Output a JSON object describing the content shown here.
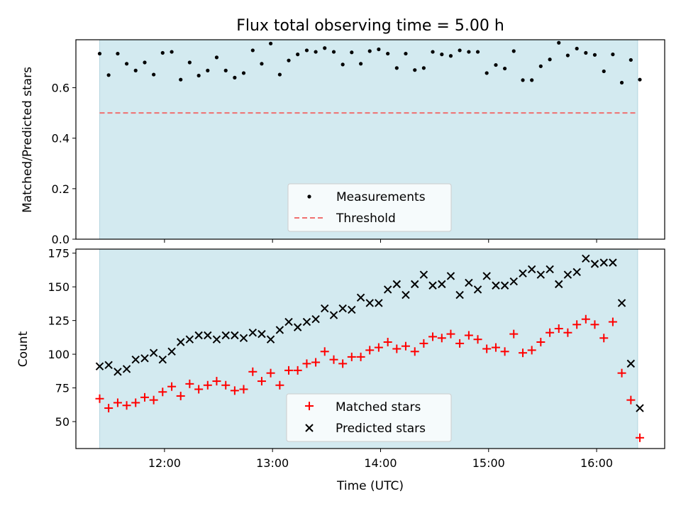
{
  "chart_data": [
    {
      "type": "scatter",
      "title": "Flux total observing time = 5.00 h",
      "xlabel": "",
      "ylabel": "Matched/Predicted stars",
      "xlim": [
        11.18,
        16.63
      ],
      "ylim": [
        0,
        0.79
      ],
      "yticks": [
        0,
        0.2,
        0.4,
        0.6
      ],
      "ytick_labels": [
        "0.0",
        "0.2",
        "0.4",
        "0.6"
      ],
      "shaded_x": [
        11.4,
        16.38
      ],
      "shade_color": "#d3eaf0",
      "threshold": 0.5,
      "legend": [
        "Measurements",
        "Threshold"
      ],
      "legend_location": "lower center",
      "series": [
        {
          "name": "Measurements",
          "x": [
            11.4,
            11.483,
            11.567,
            11.65,
            11.733,
            11.817,
            11.9,
            11.983,
            12.067,
            12.15,
            12.233,
            12.317,
            12.4,
            12.483,
            12.567,
            12.65,
            12.733,
            12.817,
            12.9,
            12.983,
            13.067,
            13.15,
            13.233,
            13.317,
            13.4,
            13.483,
            13.567,
            13.65,
            13.733,
            13.817,
            13.9,
            13.983,
            14.067,
            14.15,
            14.233,
            14.317,
            14.4,
            14.483,
            14.567,
            14.65,
            14.733,
            14.817,
            14.9,
            14.983,
            15.067,
            15.15,
            15.233,
            15.317,
            15.4,
            15.483,
            15.567,
            15.65,
            15.733,
            15.817,
            15.9,
            15.983,
            16.067,
            16.15,
            16.233,
            16.317,
            16.4
          ],
          "values": [
            0.735,
            0.65,
            0.735,
            0.695,
            0.668,
            0.7,
            0.652,
            0.738,
            0.742,
            0.632,
            0.7,
            0.648,
            0.668,
            0.72,
            0.668,
            0.64,
            0.658,
            0.748,
            0.695,
            0.775,
            0.652,
            0.708,
            0.732,
            0.748,
            0.742,
            0.757,
            0.742,
            0.692,
            0.74,
            0.695,
            0.745,
            0.752,
            0.735,
            0.678,
            0.735,
            0.67,
            0.678,
            0.742,
            0.732,
            0.726,
            0.748,
            0.742,
            0.742,
            0.658,
            0.69,
            0.676,
            0.745,
            0.63,
            0.63,
            0.685,
            0.712,
            0.778,
            0.728,
            0.755,
            0.738,
            0.73,
            0.665,
            0.732,
            0.62,
            0.71,
            0.632
          ]
        },
        {
          "name": "Threshold",
          "values": [
            0.5
          ]
        }
      ]
    },
    {
      "type": "scatter",
      "title": "",
      "xlabel": "Time (UTC)",
      "ylabel": "Count",
      "xlim": [
        11.18,
        16.63
      ],
      "ylim": [
        30,
        178
      ],
      "yticks": [
        50,
        75,
        100,
        125,
        150,
        175
      ],
      "xticks": [
        12,
        13,
        14,
        15,
        16
      ],
      "xtick_labels": [
        "12:00",
        "13:00",
        "14:00",
        "15:00",
        "16:00"
      ],
      "shaded_x": [
        11.4,
        16.38
      ],
      "shade_color": "#d3eaf0",
      "legend": [
        "Matched stars",
        "Predicted stars"
      ],
      "legend_location": "lower center",
      "series": [
        {
          "name": "Matched stars",
          "color": "#ff0000",
          "x": [
            11.4,
            11.483,
            11.567,
            11.65,
            11.733,
            11.817,
            11.9,
            11.983,
            12.067,
            12.15,
            12.233,
            12.317,
            12.4,
            12.483,
            12.567,
            12.65,
            12.733,
            12.817,
            12.9,
            12.983,
            13.067,
            13.15,
            13.233,
            13.317,
            13.4,
            13.483,
            13.567,
            13.65,
            13.733,
            13.817,
            13.9,
            13.983,
            14.067,
            14.15,
            14.233,
            14.317,
            14.4,
            14.483,
            14.567,
            14.65,
            14.733,
            14.817,
            14.9,
            14.983,
            15.067,
            15.15,
            15.233,
            15.317,
            15.4,
            15.483,
            15.567,
            15.65,
            15.733,
            15.817,
            15.9,
            15.983,
            16.067,
            16.15,
            16.233,
            16.317,
            16.4
          ],
          "values": [
            67,
            60,
            64,
            62,
            64,
            68,
            66,
            72,
            76,
            69,
            78,
            74,
            77,
            80,
            77,
            73,
            74,
            87,
            80,
            86,
            77,
            88,
            88,
            93,
            94,
            102,
            96,
            93,
            98,
            98,
            103,
            105,
            109,
            104,
            106,
            102,
            108,
            113,
            112,
            115,
            108,
            114,
            111,
            104,
            105,
            102,
            115,
            101,
            103,
            109,
            116,
            119,
            116,
            122,
            126,
            122,
            112,
            124,
            86,
            66,
            38
          ]
        },
        {
          "name": "Predicted stars",
          "color": "#000000",
          "x": [
            11.4,
            11.483,
            11.567,
            11.65,
            11.733,
            11.817,
            11.9,
            11.983,
            12.067,
            12.15,
            12.233,
            12.317,
            12.4,
            12.483,
            12.567,
            12.65,
            12.733,
            12.817,
            12.9,
            12.983,
            13.067,
            13.15,
            13.233,
            13.317,
            13.4,
            13.483,
            13.567,
            13.65,
            13.733,
            13.817,
            13.9,
            13.983,
            14.067,
            14.15,
            14.233,
            14.317,
            14.4,
            14.483,
            14.567,
            14.65,
            14.733,
            14.817,
            14.9,
            14.983,
            15.067,
            15.15,
            15.233,
            15.317,
            15.4,
            15.483,
            15.567,
            15.65,
            15.733,
            15.817,
            15.9,
            15.983,
            16.067,
            16.15,
            16.233,
            16.317,
            16.4
          ],
          "values": [
            91,
            92,
            87,
            89,
            96,
            97,
            101,
            96,
            102,
            109,
            111,
            114,
            114,
            111,
            114,
            114,
            112,
            116,
            115,
            111,
            118,
            124,
            120,
            124,
            126,
            134,
            129,
            134,
            133,
            142,
            138,
            138,
            148,
            152,
            144,
            152,
            159,
            151,
            152,
            158,
            144,
            153,
            148,
            158,
            151,
            151,
            154,
            160,
            163,
            159,
            163,
            152,
            159,
            161,
            171,
            167,
            168,
            168,
            138,
            93,
            60
          ]
        }
      ]
    }
  ]
}
